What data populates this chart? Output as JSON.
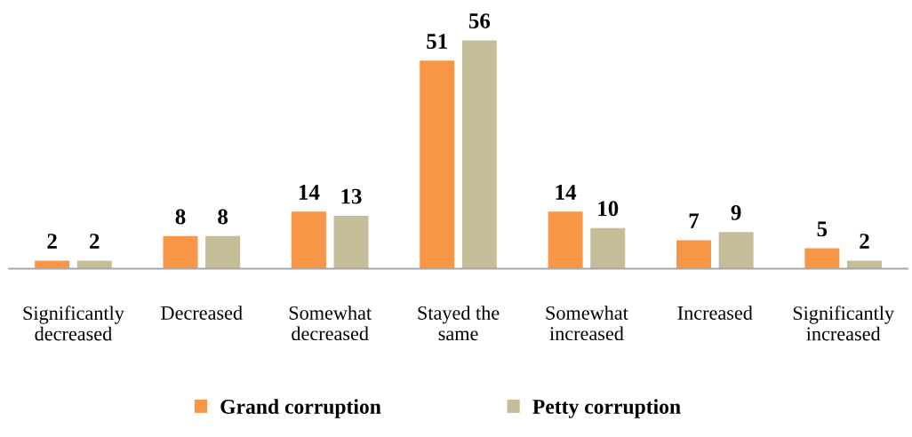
{
  "chart_data": {
    "type": "bar",
    "categories": [
      "Significantly\ndecreased",
      "Decreased",
      "Somewhat\ndecreased",
      "Stayed the\nsame",
      "Somewhat\nincreased",
      "Increased",
      "Significantly\nincreased"
    ],
    "series": [
      {
        "name": "Grand corruption",
        "color": "#f79646",
        "values": [
          2,
          8,
          14,
          51,
          14,
          7,
          5
        ]
      },
      {
        "name": "Petty corruption",
        "color": "#c4bd97",
        "values": [
          2,
          8,
          13,
          56,
          10,
          9,
          2
        ]
      }
    ],
    "data_labels": true,
    "legend": "bottom",
    "grid": false
  }
}
